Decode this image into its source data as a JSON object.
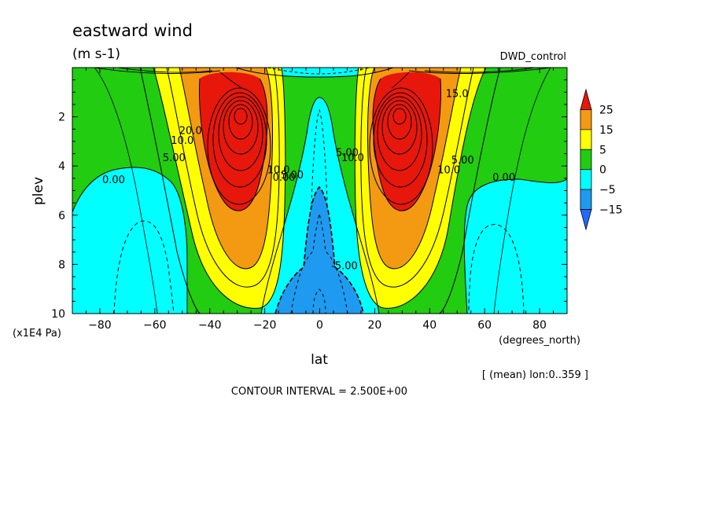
{
  "title": "eastward wind",
  "units": "(m s-1)",
  "dataset": "DWD_control",
  "footer": {
    "mean_note": "[ (mean) lon:0..359 ]",
    "contour_interval": "CONTOUR INTERVAL = 2.500E+00"
  },
  "chart_data": {
    "type": "heatmap",
    "xlabel": "lat",
    "xunits": "(degrees_north)",
    "ylabel": "plev",
    "yunits": "(x1E4 Pa)",
    "xlim": [
      -90,
      90
    ],
    "ylim": [
      0,
      10
    ],
    "y_inverted": true,
    "xticks": [
      -80,
      -60,
      -40,
      -20,
      0,
      20,
      40,
      60,
      80
    ],
    "yticks": [
      2,
      4,
      6,
      8,
      10
    ],
    "colorbar": {
      "levels": [
        "25",
        "15",
        "5",
        "0",
        "-5",
        "-15"
      ],
      "colors": [
        "#e8170c",
        "#f39a12",
        "#ffff00",
        "#22cc11",
        "#00ffff",
        "#1e9bf0",
        "#1e6bff"
      ]
    },
    "contour_interval": 2.5,
    "contour_labels": [
      {
        "text": "0.00",
        "lat": -75,
        "plev": 4.7
      },
      {
        "text": "0.00",
        "lat": 67,
        "plev": 4.6
      },
      {
        "text": "5.00",
        "lat": -53,
        "plev": 3.8
      },
      {
        "text": "10.0",
        "lat": -50,
        "plev": 3.1
      },
      {
        "text": "20.0",
        "lat": -47,
        "plev": 2.7
      },
      {
        "text": "10.0",
        "lat": -15,
        "plev": 4.3
      },
      {
        "text": "5.00",
        "lat": -10,
        "plev": 4.5
      },
      {
        "text": "0.00",
        "lat": -13,
        "plev": 4.6
      },
      {
        "text": "5.00",
        "lat": 10,
        "plev": 3.6
      },
      {
        "text": "10.0",
        "lat": 12,
        "plev": 3.8
      },
      {
        "text": "10.0",
        "lat": 47,
        "plev": 4.3
      },
      {
        "text": "5.00",
        "lat": 52,
        "plev": 3.9
      },
      {
        "text": "15.0",
        "lat": 50,
        "plev": 1.2
      },
      {
        "text": "-5.00",
        "lat": 9,
        "plev": 8.2
      }
    ]
  }
}
